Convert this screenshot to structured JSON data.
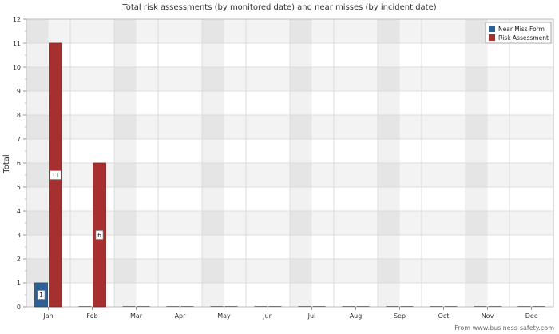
{
  "chart_data": {
    "type": "bar",
    "title": "Total risk assessments (by monitored date) and near misses (by incident date)",
    "xlabel": "",
    "ylabel": "Total",
    "categories": [
      "Jan",
      "Feb",
      "Mar",
      "Apr",
      "May",
      "Jun",
      "Jul",
      "Aug",
      "Sep",
      "Oct",
      "Nov",
      "Dec"
    ],
    "series": [
      {
        "name": "Near Miss Form",
        "values": [
          1,
          0,
          0,
          0,
          0,
          0,
          0,
          0,
          0,
          0,
          0,
          0
        ],
        "color": "#2e5f95"
      },
      {
        "name": "Risk Assessment",
        "values": [
          11,
          6,
          0,
          0,
          0,
          0,
          0,
          0,
          0,
          0,
          0,
          0
        ],
        "color": "#a63030"
      }
    ],
    "ylim": [
      0,
      12
    ],
    "yticks": [
      0,
      1,
      2,
      3,
      4,
      5,
      6,
      7,
      8,
      9,
      10,
      11,
      12
    ],
    "grid": true,
    "legend_position": "top-right",
    "data_labels": [
      {
        "series": 0,
        "category": "Jan",
        "text": "1"
      },
      {
        "series": 1,
        "category": "Jan",
        "text": "11"
      },
      {
        "series": 1,
        "category": "Feb",
        "text": "6"
      }
    ]
  },
  "footer": {
    "credit": "From www.business-safety.com"
  }
}
